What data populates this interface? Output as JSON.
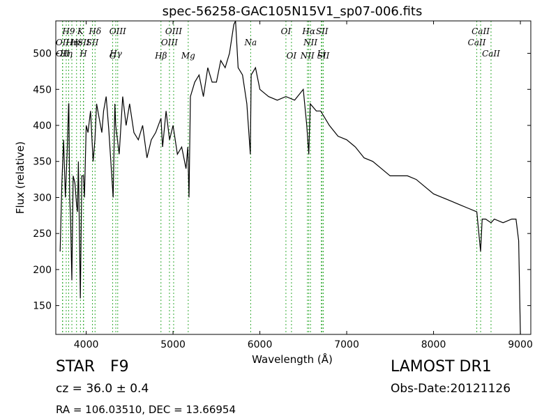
{
  "chart_data": {
    "type": "line",
    "title": "spec-56258-GAC105N15V1_sp07-006.fits",
    "xlabel": "Wavelength (Å)",
    "ylabel": "Flux (relative)",
    "xlim": [
      3650,
      9120
    ],
    "ylim": [
      110,
      545
    ],
    "xticks": [
      4000,
      5000,
      6000,
      7000,
      8000,
      9000
    ],
    "yticks": [
      150,
      200,
      250,
      300,
      350,
      400,
      450,
      500
    ],
    "grid": false,
    "line_color": "#000000",
    "marker_color": "#33aa33",
    "series": [
      {
        "x": [
          3700,
          3720,
          3740,
          3760,
          3780,
          3798,
          3800,
          3810,
          3820,
          3835,
          3850,
          3870,
          3889,
          3900,
          3910,
          3933,
          3950,
          3969,
          3980,
          4000,
          4020,
          4050,
          4080,
          4101,
          4120,
          4150,
          4180,
          4200,
          4230,
          4260,
          4300,
          4310,
          4330,
          4340,
          4380,
          4420,
          4460,
          4500,
          4550,
          4600,
          4650,
          4700,
          4750,
          4800,
          4861,
          4880,
          4920,
          4960,
          5000,
          5050,
          5100,
          5150,
          5170,
          5184,
          5200,
          5250,
          5300,
          5350,
          5400,
          5450,
          5500,
          5550,
          5600,
          5650,
          5700,
          5720,
          5750,
          5800,
          5850,
          5890,
          5900,
          5950,
          6000,
          6100,
          6200,
          6300,
          6400,
          6500,
          6540,
          6563,
          6580,
          6650,
          6700,
          6800,
          6900,
          7000,
          7100,
          7200,
          7300,
          7400,
          7500,
          7600,
          7700,
          7800,
          7900,
          8000,
          8100,
          8200,
          8300,
          8400,
          8498,
          8542,
          8560,
          8600,
          8662,
          8700,
          8800,
          8900,
          8950,
          8980,
          9000
        ],
        "values": [
          225,
          320,
          380,
          300,
          360,
          430,
          430,
          300,
          270,
          185,
          330,
          320,
          290,
          280,
          350,
          160,
          330,
          330,
          300,
          400,
          390,
          420,
          350,
          380,
          430,
          410,
          390,
          420,
          440,
          395,
          320,
          300,
          430,
          400,
          360,
          440,
          400,
          430,
          390,
          380,
          400,
          355,
          380,
          390,
          410,
          370,
          420,
          380,
          400,
          360,
          370,
          340,
          370,
          300,
          440,
          460,
          470,
          440,
          480,
          460,
          460,
          490,
          480,
          500,
          540,
          560,
          480,
          470,
          430,
          360,
          470,
          480,
          450,
          440,
          435,
          440,
          435,
          450,
          400,
          360,
          430,
          420,
          420,
          400,
          385,
          380,
          370,
          355,
          350,
          340,
          330,
          330,
          330,
          325,
          315,
          305,
          300,
          295,
          290,
          285,
          280,
          225,
          270,
          270,
          265,
          270,
          265,
          270,
          270,
          240,
          110
        ]
      }
    ],
    "line_ids": [
      {
        "x": 3727,
        "label": "OII",
        "row": 2
      },
      {
        "x": 3729,
        "label": "OII",
        "row": 3
      },
      {
        "x": 3770,
        "label": "Hη",
        "row": 3
      },
      {
        "x": 3798,
        "label": "H9",
        "row": 1
      },
      {
        "x": 3835,
        "label": "Hη",
        "row": 2
      },
      {
        "x": 3889,
        "label": "Hε",
        "row": 2
      },
      {
        "x": 3934,
        "label": "K",
        "row": 1
      },
      {
        "x": 3968,
        "label": "H",
        "row": 3
      },
      {
        "x": 3970,
        "label": "SII",
        "row": 2
      },
      {
        "x": 4072,
        "label": "SII",
        "row": 2
      },
      {
        "x": 4102,
        "label": "Hδ",
        "row": 1
      },
      {
        "x": 4305,
        "label": "G",
        "row": 4
      },
      {
        "x": 4341,
        "label": "Hγ",
        "row": 3
      },
      {
        "x": 4363,
        "label": "OIII",
        "row": 1
      },
      {
        "x": 4861,
        "label": "Hβ",
        "row": 4
      },
      {
        "x": 4959,
        "label": "OIII",
        "row": 2
      },
      {
        "x": 5007,
        "label": "OIII",
        "row": 1
      },
      {
        "x": 5175,
        "label": "Mg",
        "row": 4
      },
      {
        "x": 5894,
        "label": "Na",
        "row": 2
      },
      {
        "x": 6300,
        "label": "OI",
        "row": 1
      },
      {
        "x": 6364,
        "label": "OI",
        "row": 4
      },
      {
        "x": 6548,
        "label": "NII",
        "row": 4
      },
      {
        "x": 6563,
        "label": "Hα",
        "row": 1
      },
      {
        "x": 6583,
        "label": "NII",
        "row": 2
      },
      {
        "x": 6708,
        "label": "Li",
        "row": 3
      },
      {
        "x": 6716,
        "label": "SII",
        "row": 1
      },
      {
        "x": 6731,
        "label": "SII",
        "row": 4
      },
      {
        "x": 8498,
        "label": "CaII",
        "row": 2
      },
      {
        "x": 8542,
        "label": "CaII",
        "row": 1
      },
      {
        "x": 8662,
        "label": "CaII",
        "row": 3
      }
    ]
  },
  "info": {
    "class": "STAR",
    "subclass": "F9",
    "cz": "cz = 36.0 ± 0.4",
    "radec": "RA = 106.03510, DEC = 13.66954",
    "survey": "LAMOST DR1",
    "obs_date": "Obs-Date:20121126"
  }
}
